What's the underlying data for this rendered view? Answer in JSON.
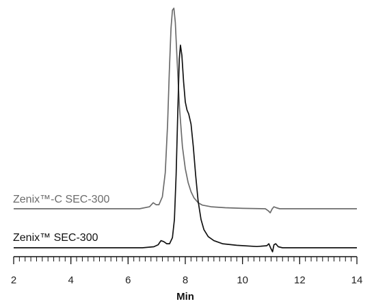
{
  "chart_data": {
    "type": "line",
    "title": "",
    "xlabel": "Min",
    "ylabel": "",
    "xlim": [
      2,
      14
    ],
    "x_ticks": [
      2,
      4,
      6,
      8,
      10,
      12,
      14
    ],
    "x_ticks_labels": [
      "2",
      "4",
      "6",
      "8",
      "10",
      "12",
      "14"
    ],
    "grid": false,
    "legend": "labels-on-traces",
    "series": [
      {
        "name": "Zenix™-C SEC-300",
        "color": "#6b6b6b",
        "points": [
          [
            2.0,
            0.0
          ],
          [
            6.4,
            0.0
          ],
          [
            6.75,
            0.01
          ],
          [
            6.88,
            0.03
          ],
          [
            6.98,
            0.02
          ],
          [
            7.08,
            0.02
          ],
          [
            7.2,
            0.06
          ],
          [
            7.3,
            0.18
          ],
          [
            7.38,
            0.42
          ],
          [
            7.44,
            0.68
          ],
          [
            7.5,
            0.9
          ],
          [
            7.55,
            0.99
          ],
          [
            7.6,
            1.0
          ],
          [
            7.65,
            0.93
          ],
          [
            7.72,
            0.72
          ],
          [
            7.8,
            0.5
          ],
          [
            7.9,
            0.31
          ],
          [
            8.0,
            0.2
          ],
          [
            8.1,
            0.13
          ],
          [
            8.2,
            0.085
          ],
          [
            8.3,
            0.055
          ],
          [
            8.45,
            0.03
          ],
          [
            8.6,
            0.018
          ],
          [
            8.9,
            0.01
          ],
          [
            9.4,
            0.005
          ],
          [
            10.0,
            0.002
          ],
          [
            10.8,
            0.0
          ],
          [
            10.9,
            -0.01
          ],
          [
            10.97,
            -0.02
          ],
          [
            11.04,
            0.0
          ],
          [
            11.1,
            0.01
          ],
          [
            11.18,
            0.005
          ],
          [
            11.3,
            0.0
          ],
          [
            14.0,
            0.0
          ]
        ]
      },
      {
        "name": "Zenix™ SEC-300",
        "color": "#111111",
        "points": [
          [
            2.0,
            0.0
          ],
          [
            6.5,
            0.0
          ],
          [
            6.9,
            0.005
          ],
          [
            7.05,
            0.015
          ],
          [
            7.15,
            0.035
          ],
          [
            7.25,
            0.03
          ],
          [
            7.35,
            0.02
          ],
          [
            7.45,
            0.02
          ],
          [
            7.55,
            0.05
          ],
          [
            7.62,
            0.14
          ],
          [
            7.68,
            0.36
          ],
          [
            7.74,
            0.68
          ],
          [
            7.79,
            0.93
          ],
          [
            7.83,
            1.0
          ],
          [
            7.88,
            0.95
          ],
          [
            7.94,
            0.82
          ],
          [
            8.0,
            0.72
          ],
          [
            8.06,
            0.68
          ],
          [
            8.12,
            0.66
          ],
          [
            8.2,
            0.61
          ],
          [
            8.28,
            0.5
          ],
          [
            8.36,
            0.36
          ],
          [
            8.45,
            0.23
          ],
          [
            8.55,
            0.14
          ],
          [
            8.65,
            0.09
          ],
          [
            8.8,
            0.055
          ],
          [
            9.0,
            0.035
          ],
          [
            9.3,
            0.02
          ],
          [
            9.8,
            0.012
          ],
          [
            10.5,
            0.006
          ],
          [
            10.85,
            0.01
          ],
          [
            10.92,
            0.02
          ],
          [
            10.98,
            0.0
          ],
          [
            11.05,
            -0.02
          ],
          [
            11.1,
            0.015
          ],
          [
            11.16,
            0.02
          ],
          [
            11.25,
            0.005
          ],
          [
            11.4,
            0.0
          ],
          [
            14.0,
            0.0
          ]
        ]
      }
    ]
  }
}
